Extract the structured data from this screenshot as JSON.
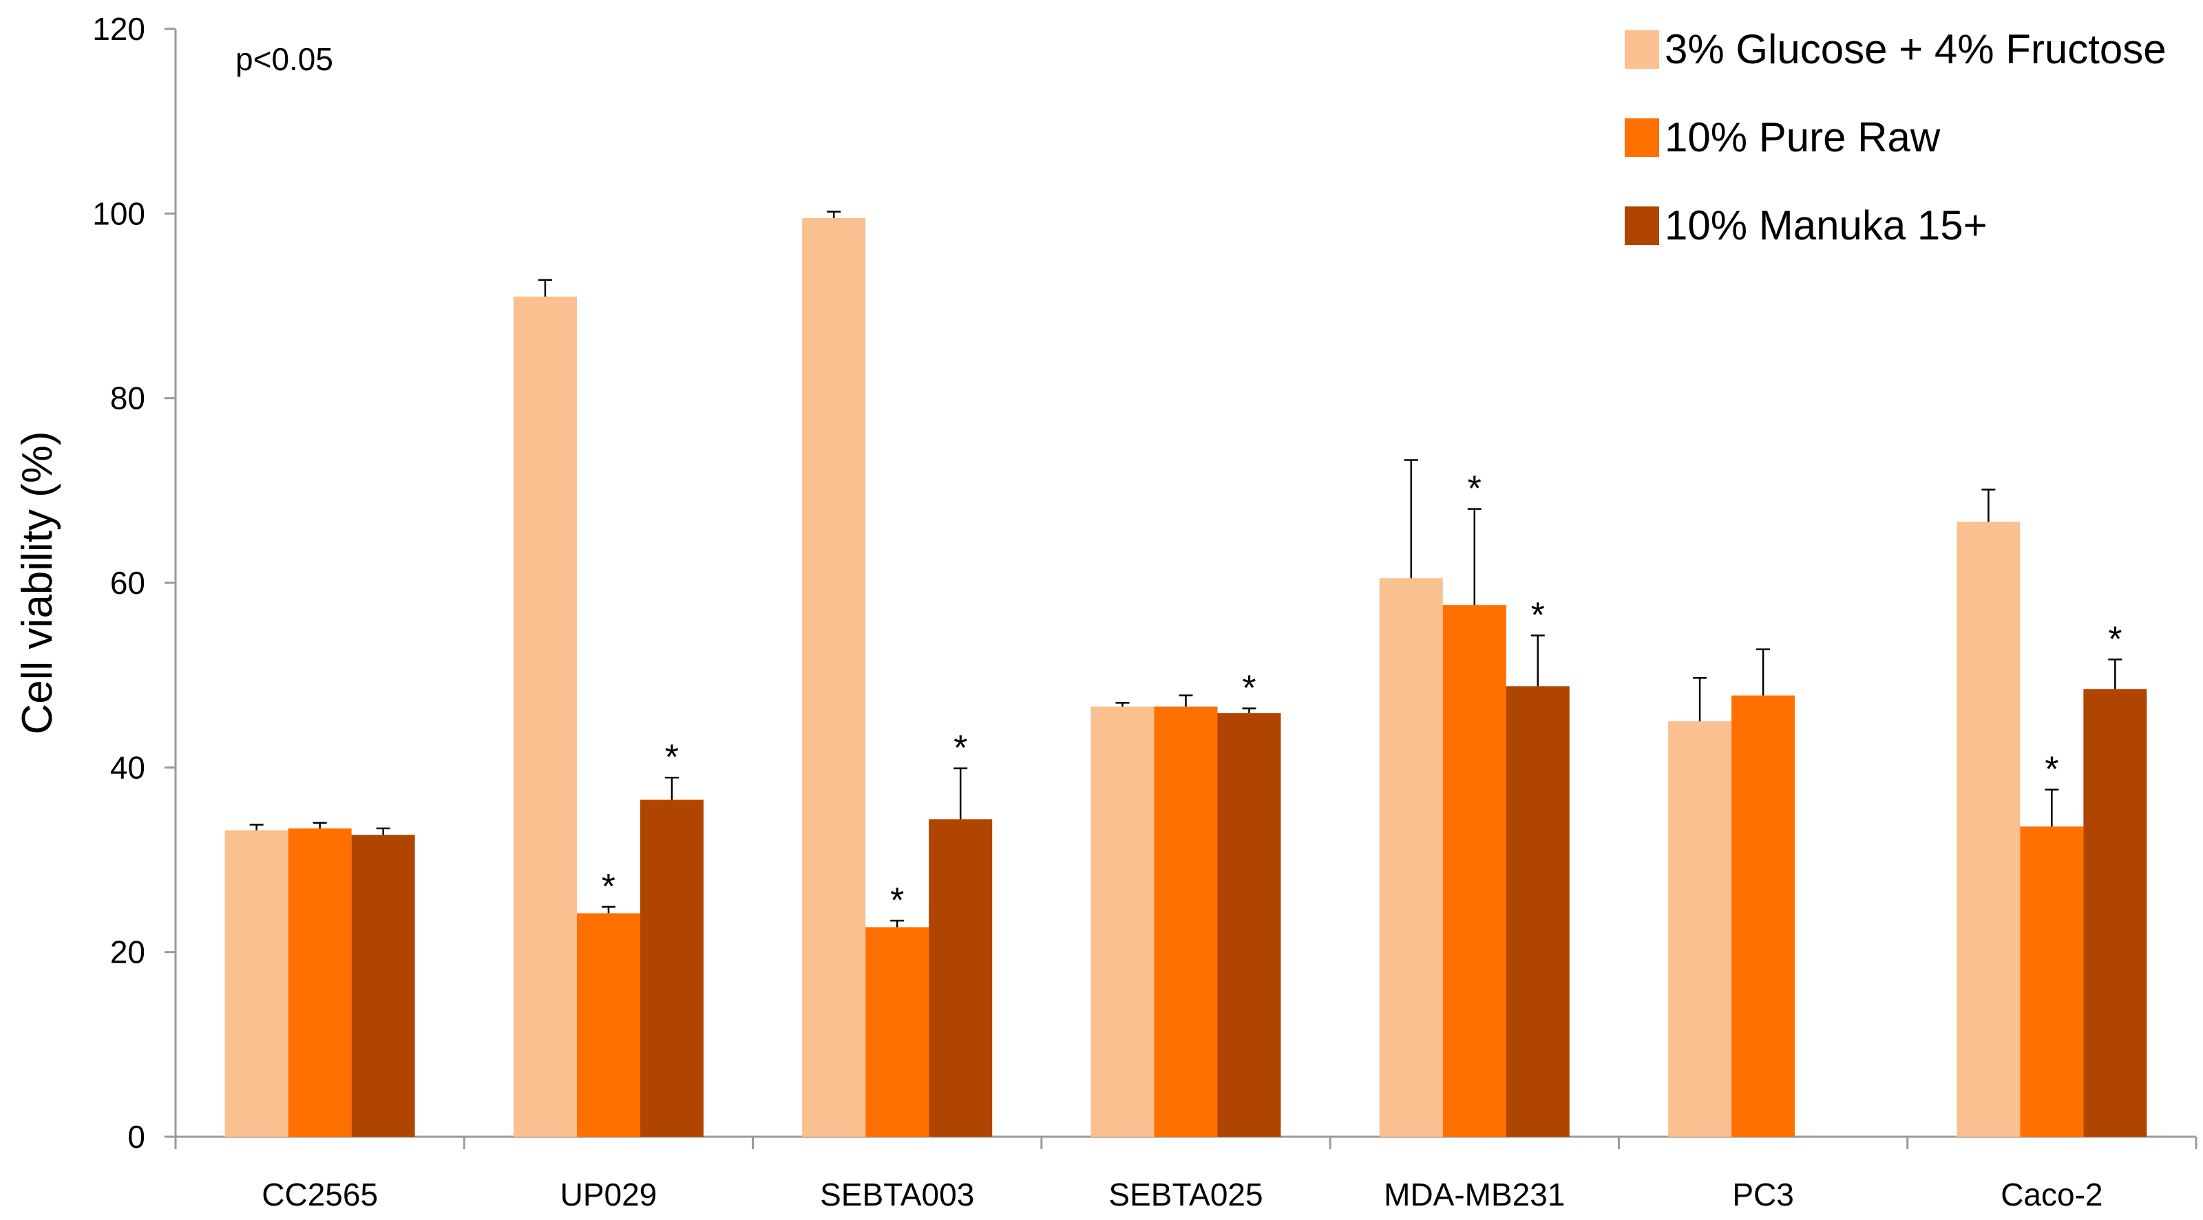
{
  "chart_data": {
    "type": "bar",
    "title": "",
    "xlabel": "",
    "ylabel": "Cell viability (%)",
    "ylim": [
      0,
      120
    ],
    "yticks": [
      0,
      20,
      40,
      60,
      80,
      100,
      120
    ],
    "grid": false,
    "legend_position": "top-right",
    "annotation": "p<0.05",
    "categories": [
      "CC2565",
      "UP029",
      "SEBTA003",
      "SEBTA025",
      "MDA-MB231",
      "PC3",
      "Caco-2"
    ],
    "series": [
      {
        "name": "3% Glucose + 4% Fructose",
        "color": "#fac090",
        "values": [
          33.2,
          91.0,
          99.5,
          46.6,
          60.5,
          45.0,
          66.6
        ],
        "errors": [
          0.6,
          1.8,
          0.7,
          0.4,
          12.8,
          4.7,
          3.5
        ],
        "significant": [
          false,
          false,
          false,
          false,
          false,
          false,
          false
        ]
      },
      {
        "name": "10% Pure Raw",
        "color": "#ff7000",
        "values": [
          33.4,
          24.2,
          22.7,
          46.6,
          57.6,
          47.8,
          33.6
        ],
        "errors": [
          0.6,
          0.7,
          0.7,
          1.2,
          10.4,
          5.0,
          4.0
        ],
        "significant": [
          false,
          true,
          true,
          false,
          true,
          false,
          true
        ]
      },
      {
        "name": "10% Manuka 15+",
        "color": "#b04500",
        "values": [
          32.7,
          36.5,
          34.4,
          45.9,
          48.8,
          null,
          48.5
        ],
        "errors": [
          0.7,
          2.4,
          5.5,
          0.5,
          5.5,
          null,
          3.2
        ],
        "significant": [
          false,
          true,
          true,
          true,
          true,
          false,
          true
        ]
      }
    ]
  }
}
